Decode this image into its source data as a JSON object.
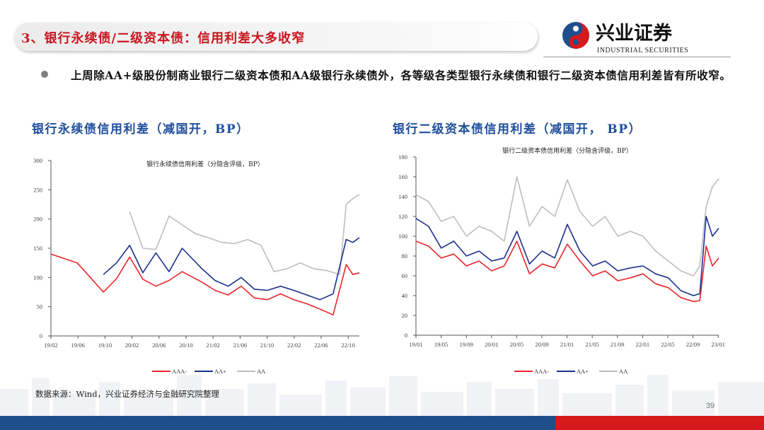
{
  "slide": {
    "title": "3、银行永续债/二级资本债：信用利差大多收窄",
    "summary": "上周除AA+级股份制商业银行二级资本债和AA级银行永续债外，各等级各类型银行永续债和银行二级资本债信用利差皆有所收窄。",
    "source": "数据来源：Wind，兴业证券经济与金融研究院整理",
    "page_number": "39"
  },
  "logo": {
    "name_cn": "兴业证券",
    "name_en": "INDUSTRIAL SECURITIES",
    "brand_red": "#d6191d",
    "brand_blue": "#1f4e8c"
  },
  "colors": {
    "title_red": "#c8161d",
    "heading_blue": "#1f4e9c",
    "series_AAA-": "#e8262a",
    "series_AA+": "#1c2f8c",
    "series_AA": "#bdbdbd"
  },
  "chart_data": [
    {
      "type": "line",
      "heading": "银行永续债信用利差（减国开，BP）",
      "title": "银行永续债信用利差（分隐含评级，BP）",
      "x_ticks": [
        "19/02",
        "19/06",
        "19/10",
        "20/02",
        "20/06",
        "20/10",
        "21/02",
        "21/06",
        "21/10",
        "22/02",
        "22/06",
        "22/10"
      ],
      "x_range": [
        "2019-02",
        "2023-01"
      ],
      "ylim": [
        0,
        300
      ],
      "y_ticks": [
        0,
        50,
        100,
        150,
        200,
        250,
        300
      ],
      "legend": [
        "AAA-",
        "AA+",
        "AA"
      ],
      "legend_position": "bottom",
      "grid": false,
      "series": [
        {
          "name": "AAA-",
          "x": [
            "2019-02",
            "2019-06",
            "2019-10",
            "2019-12",
            "2020-02",
            "2020-04",
            "2020-06",
            "2020-08",
            "2020-10",
            "2021-01",
            "2021-03",
            "2021-05",
            "2021-07",
            "2021-09",
            "2021-11",
            "2022-01",
            "2022-03",
            "2022-05",
            "2022-07",
            "2022-09",
            "2022-11",
            "2022-12",
            "2023-01"
          ],
          "values": [
            140,
            125,
            75,
            98,
            135,
            97,
            85,
            95,
            110,
            92,
            78,
            70,
            85,
            65,
            62,
            72,
            62,
            55,
            46,
            36,
            122,
            105,
            108
          ]
        },
        {
          "name": "AA+",
          "x": [
            "2019-10",
            "2019-12",
            "2020-02",
            "2020-04",
            "2020-06",
            "2020-08",
            "2020-10",
            "2021-01",
            "2021-03",
            "2021-05",
            "2021-07",
            "2021-09",
            "2021-11",
            "2022-01",
            "2022-03",
            "2022-05",
            "2022-07",
            "2022-09",
            "2022-11",
            "2022-12",
            "2023-01"
          ],
          "values": [
            105,
            125,
            155,
            108,
            142,
            110,
            150,
            115,
            95,
            85,
            100,
            80,
            78,
            85,
            78,
            70,
            62,
            72,
            165,
            160,
            168
          ]
        },
        {
          "name": "AA",
          "x": [
            "2020-02",
            "2020-04",
            "2020-06",
            "2020-08",
            "2020-10",
            "2020-12",
            "2021-02",
            "2021-04",
            "2021-06",
            "2021-08",
            "2021-10",
            "2021-12",
            "2022-02",
            "2022-04",
            "2022-06",
            "2022-08",
            "2022-10",
            "2022-11",
            "2022-12",
            "2023-01"
          ],
          "values": [
            212,
            150,
            148,
            205,
            190,
            175,
            168,
            160,
            158,
            165,
            155,
            110,
            115,
            125,
            115,
            112,
            105,
            225,
            235,
            242
          ]
        }
      ]
    },
    {
      "type": "line",
      "heading": "银行二级资本债信用利差（减国开， BP）",
      "title": "银行二级资本债信用利差（分隐含评级，BP）",
      "x_ticks": [
        "19/01",
        "19/05",
        "19/09",
        "20/01",
        "20/05",
        "20/09",
        "21/01",
        "21/05",
        "21/09",
        "22/01",
        "22/05",
        "22/09",
        "23/01"
      ],
      "x_range": [
        "2019-01",
        "2023-01"
      ],
      "ylim": [
        0,
        180
      ],
      "y_ticks": [
        0,
        20,
        40,
        60,
        80,
        100,
        120,
        140,
        160,
        180
      ],
      "legend": [
        "AAA-",
        "AA+",
        "AA"
      ],
      "legend_position": "bottom",
      "grid": false,
      "series": [
        {
          "name": "AAA-",
          "x": [
            "2019-01",
            "2019-03",
            "2019-05",
            "2019-07",
            "2019-09",
            "2019-11",
            "2020-01",
            "2020-03",
            "2020-05",
            "2020-07",
            "2020-09",
            "2020-11",
            "2021-01",
            "2021-03",
            "2021-05",
            "2021-07",
            "2021-09",
            "2021-11",
            "2022-01",
            "2022-03",
            "2022-05",
            "2022-07",
            "2022-09",
            "2022-10",
            "2022-11",
            "2022-12",
            "2023-01"
          ],
          "values": [
            95,
            90,
            78,
            82,
            70,
            75,
            65,
            70,
            95,
            62,
            72,
            68,
            92,
            75,
            60,
            65,
            55,
            58,
            62,
            52,
            48,
            38,
            34,
            35,
            90,
            70,
            78
          ]
        },
        {
          "name": "AA+",
          "x": [
            "2019-01",
            "2019-03",
            "2019-05",
            "2019-07",
            "2019-09",
            "2019-11",
            "2020-01",
            "2020-03",
            "2020-05",
            "2020-07",
            "2020-09",
            "2020-11",
            "2021-01",
            "2021-03",
            "2021-05",
            "2021-07",
            "2021-09",
            "2021-11",
            "2022-01",
            "2022-03",
            "2022-05",
            "2022-07",
            "2022-09",
            "2022-10",
            "2022-11",
            "2022-12",
            "2023-01"
          ],
          "values": [
            118,
            110,
            88,
            95,
            80,
            85,
            75,
            78,
            105,
            72,
            85,
            78,
            112,
            85,
            70,
            75,
            65,
            68,
            70,
            62,
            58,
            45,
            40,
            42,
            120,
            100,
            108
          ]
        },
        {
          "name": "AA",
          "x": [
            "2019-01",
            "2019-03",
            "2019-05",
            "2019-07",
            "2019-09",
            "2019-11",
            "2020-01",
            "2020-03",
            "2020-05",
            "2020-07",
            "2020-09",
            "2020-11",
            "2021-01",
            "2021-03",
            "2021-05",
            "2021-07",
            "2021-09",
            "2021-11",
            "2022-01",
            "2022-03",
            "2022-05",
            "2022-07",
            "2022-09",
            "2022-10",
            "2022-11",
            "2022-12",
            "2023-01"
          ],
          "values": [
            142,
            135,
            115,
            120,
            100,
            110,
            105,
            95,
            160,
            110,
            130,
            120,
            157,
            125,
            110,
            120,
            100,
            105,
            100,
            85,
            75,
            65,
            60,
            70,
            130,
            150,
            158
          ]
        }
      ]
    }
  ]
}
